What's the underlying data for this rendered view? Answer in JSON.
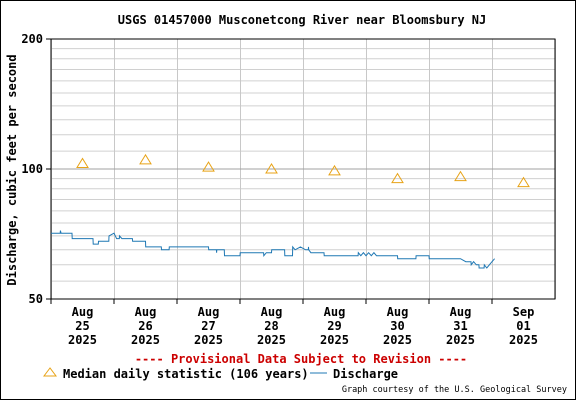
{
  "chart_data": {
    "type": "line",
    "title": "USGS 01457000 Musconetcong River near Bloomsbury NJ",
    "ylabel": "Discharge, cubic feet per second",
    "xlabel": "",
    "y_scale": "log",
    "ylim": [
      50,
      200
    ],
    "y_ticks": [
      50,
      100,
      200
    ],
    "x_start": "2025-08-25 00:00",
    "x_end": "2025-09-02 00:00",
    "x_ticks": [
      {
        "date": "2025-08-25",
        "label": [
          "Aug",
          "25",
          "2025"
        ]
      },
      {
        "date": "2025-08-26",
        "label": [
          "Aug",
          "26",
          "2025"
        ]
      },
      {
        "date": "2025-08-27",
        "label": [
          "Aug",
          "27",
          "2025"
        ]
      },
      {
        "date": "2025-08-28",
        "label": [
          "Aug",
          "28",
          "2025"
        ]
      },
      {
        "date": "2025-08-29",
        "label": [
          "Aug",
          "29",
          "2025"
        ]
      },
      {
        "date": "2025-08-30",
        "label": [
          "Aug",
          "30",
          "2025"
        ]
      },
      {
        "date": "2025-08-31",
        "label": [
          "Aug",
          "31",
          "2025"
        ]
      },
      {
        "date": "2025-09-01",
        "label": [
          "Sep",
          "01",
          "2025"
        ]
      }
    ],
    "grid": true,
    "series": [
      {
        "name": "Median daily statistic (106 years)",
        "kind": "marker",
        "color": "#e8a317",
        "points": [
          {
            "x": "2025-08-25 12:00",
            "y": 103
          },
          {
            "x": "2025-08-26 12:00",
            "y": 105
          },
          {
            "x": "2025-08-27 12:00",
            "y": 101
          },
          {
            "x": "2025-08-28 12:00",
            "y": 100
          },
          {
            "x": "2025-08-29 12:00",
            "y": 99
          },
          {
            "x": "2025-08-30 12:00",
            "y": 95
          },
          {
            "x": "2025-08-31 12:00",
            "y": 96
          },
          {
            "x": "2025-09-01 12:00",
            "y": 93
          }
        ]
      },
      {
        "name": "Discharge",
        "kind": "line",
        "color": "#1f78b4",
        "points": [
          {
            "x": "2025-08-25 00:00",
            "y": 71
          },
          {
            "x": "2025-08-25 03:30",
            "y": 71
          },
          {
            "x": "2025-08-25 03:35",
            "y": 72
          },
          {
            "x": "2025-08-25 03:50",
            "y": 71
          },
          {
            "x": "2025-08-25 08:00",
            "y": 71
          },
          {
            "x": "2025-08-25 08:05",
            "y": 69
          },
          {
            "x": "2025-08-25 16:00",
            "y": 69
          },
          {
            "x": "2025-08-25 16:05",
            "y": 67
          },
          {
            "x": "2025-08-25 18:00",
            "y": 67
          },
          {
            "x": "2025-08-25 18:05",
            "y": 68
          },
          {
            "x": "2025-08-25 22:00",
            "y": 68
          },
          {
            "x": "2025-08-25 22:05",
            "y": 70
          },
          {
            "x": "2025-08-26 00:00",
            "y": 71
          },
          {
            "x": "2025-08-26 01:00",
            "y": 69
          },
          {
            "x": "2025-08-26 02:00",
            "y": 69
          },
          {
            "x": "2025-08-26 02:05",
            "y": 70
          },
          {
            "x": "2025-08-26 03:00",
            "y": 69
          },
          {
            "x": "2025-08-26 07:00",
            "y": 69
          },
          {
            "x": "2025-08-26 07:05",
            "y": 68
          },
          {
            "x": "2025-08-26 12:00",
            "y": 68
          },
          {
            "x": "2025-08-26 12:05",
            "y": 66
          },
          {
            "x": "2025-08-26 18:00",
            "y": 66
          },
          {
            "x": "2025-08-26 18:05",
            "y": 65
          },
          {
            "x": "2025-08-26 21:00",
            "y": 65
          },
          {
            "x": "2025-08-26 21:05",
            "y": 66
          },
          {
            "x": "2025-08-27 12:00",
            "y": 66
          },
          {
            "x": "2025-08-27 12:05",
            "y": 65
          },
          {
            "x": "2025-08-27 15:00",
            "y": 65
          },
          {
            "x": "2025-08-27 15:05",
            "y": 64
          },
          {
            "x": "2025-08-27 15:10",
            "y": 65
          },
          {
            "x": "2025-08-27 18:00",
            "y": 65
          },
          {
            "x": "2025-08-27 18:05",
            "y": 63
          },
          {
            "x": "2025-08-28 00:00",
            "y": 63
          },
          {
            "x": "2025-08-28 00:05",
            "y": 64
          },
          {
            "x": "2025-08-28 09:00",
            "y": 64
          },
          {
            "x": "2025-08-28 09:05",
            "y": 63
          },
          {
            "x": "2025-08-28 10:00",
            "y": 64
          },
          {
            "x": "2025-08-28 12:00",
            "y": 64
          },
          {
            "x": "2025-08-28 12:05",
            "y": 65
          },
          {
            "x": "2025-08-28 17:00",
            "y": 65
          },
          {
            "x": "2025-08-28 17:05",
            "y": 63
          },
          {
            "x": "2025-08-28 20:00",
            "y": 63
          },
          {
            "x": "2025-08-28 20:05",
            "y": 66
          },
          {
            "x": "2025-08-28 21:00",
            "y": 65
          },
          {
            "x": "2025-08-28 23:00",
            "y": 66
          },
          {
            "x": "2025-08-29 01:00",
            "y": 65
          },
          {
            "x": "2025-08-29 02:00",
            "y": 65
          },
          {
            "x": "2025-08-29 02:05",
            "y": 66
          },
          {
            "x": "2025-08-29 02:10",
            "y": 65
          },
          {
            "x": "2025-08-29 03:00",
            "y": 64
          },
          {
            "x": "2025-08-29 08:00",
            "y": 64
          },
          {
            "x": "2025-08-29 08:05",
            "y": 63
          },
          {
            "x": "2025-08-29 12:00",
            "y": 63
          },
          {
            "x": "2025-08-29 21:00",
            "y": 63
          },
          {
            "x": "2025-08-29 21:05",
            "y": 64
          },
          {
            "x": "2025-08-29 22:00",
            "y": 63
          },
          {
            "x": "2025-08-29 23:00",
            "y": 64
          },
          {
            "x": "2025-08-30 00:00",
            "y": 63
          },
          {
            "x": "2025-08-30 01:00",
            "y": 64
          },
          {
            "x": "2025-08-30 02:00",
            "y": 63
          },
          {
            "x": "2025-08-30 03:00",
            "y": 64
          },
          {
            "x": "2025-08-30 04:00",
            "y": 63
          },
          {
            "x": "2025-08-30 12:00",
            "y": 63
          },
          {
            "x": "2025-08-30 12:05",
            "y": 62
          },
          {
            "x": "2025-08-30 19:00",
            "y": 62
          },
          {
            "x": "2025-08-30 19:05",
            "y": 63
          },
          {
            "x": "2025-08-31 00:00",
            "y": 63
          },
          {
            "x": "2025-08-31 00:05",
            "y": 62
          },
          {
            "x": "2025-08-31 12:00",
            "y": 62
          },
          {
            "x": "2025-08-31 14:00",
            "y": 61
          },
          {
            "x": "2025-08-31 16:00",
            "y": 61
          },
          {
            "x": "2025-08-31 16:05",
            "y": 60
          },
          {
            "x": "2025-08-31 17:00",
            "y": 61
          },
          {
            "x": "2025-08-31 18:00",
            "y": 60
          },
          {
            "x": "2025-08-31 19:00",
            "y": 60
          },
          {
            "x": "2025-08-31 19:05",
            "y": 59
          },
          {
            "x": "2025-08-31 21:00",
            "y": 59
          },
          {
            "x": "2025-08-31 21:05",
            "y": 60
          },
          {
            "x": "2025-08-31 22:00",
            "y": 59
          },
          {
            "x": "2025-08-31 23:00",
            "y": 60
          },
          {
            "x": "2025-09-01 00:00",
            "y": 61
          },
          {
            "x": "2025-09-01 01:00",
            "y": 62
          }
        ]
      }
    ],
    "notice": "---- Provisional Data Subject to Revision ----",
    "notice_color": "#cc0000",
    "credit": "Graph courtesy of the U.S. Geological Survey"
  }
}
